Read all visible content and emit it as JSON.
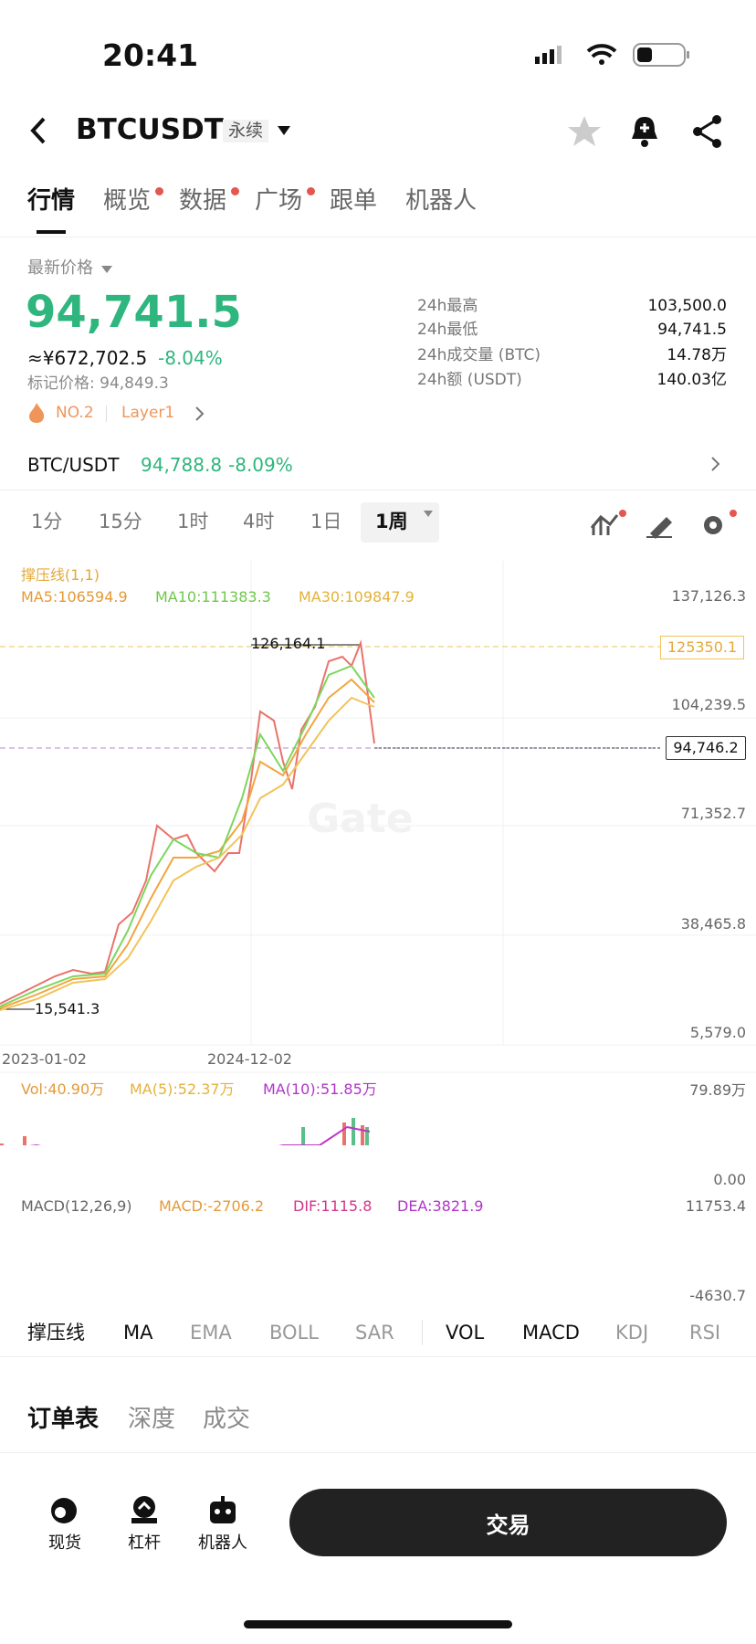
{
  "status_bar": {
    "time": "20:41"
  },
  "header": {
    "symbol": "BTCUSDT",
    "badge": "永续"
  },
  "tabs": [
    "行情",
    "概览",
    "数据",
    "广场",
    "跟单",
    "机器人"
  ],
  "price": {
    "label": "最新价格",
    "last": "94,741.5",
    "cny": "≈¥672,702.5",
    "change": "-8.04%",
    "mark": "标记价格: 94,849.3",
    "rank": "NO.2",
    "tag": "Layer1"
  },
  "stats": [
    {
      "label": "24h最高",
      "value": "103,500.0"
    },
    {
      "label": "24h最低",
      "value": "94,741.5"
    },
    {
      "label": "24h成交量 (BTC)",
      "value": "14.78万"
    },
    {
      "label": "24h额 (USDT)",
      "value": "140.03亿"
    }
  ],
  "spot": {
    "pair": "BTC/USDT",
    "price": "94,788.8",
    "change": "-8.09%"
  },
  "intervals": [
    "1分",
    "15分",
    "1时",
    "4时",
    "1日",
    "1周"
  ],
  "chart": {
    "indicator": "撑压线(1,1)",
    "ma": [
      "MA5:106594.9",
      "MA10:111383.3",
      "MA30:109847.9"
    ],
    "axis": [
      "137,126.3",
      "104,239.5",
      "71,352.7",
      "38,465.8",
      "5,579.0"
    ],
    "high": "126,164.1",
    "low": "15,541.3",
    "line_label": "125350.1",
    "current": "94,746.2",
    "watermark": "Gate",
    "dates": [
      "2023-01-02",
      "2024-12-02"
    ]
  },
  "volume": {
    "vol": "Vol:40.90万",
    "ma5": "MA(5):52.37万",
    "ma10": "MA(10):51.85万",
    "axis": [
      "79.89万",
      "0.00"
    ]
  },
  "macd": {
    "title": "MACD(12,26,9)",
    "macd": "MACD:-2706.2",
    "dif": "DIF:1115.8",
    "dea": "DEA:3821.9",
    "axis": [
      "11753.4",
      "-4630.7"
    ]
  },
  "indicators": [
    "撑压线",
    "MA",
    "EMA",
    "BOLL",
    "SAR",
    "VOL",
    "MACD",
    "KDJ",
    "RSI"
  ],
  "book_tabs": [
    "订单表",
    "深度",
    "成交"
  ],
  "bottom_nav": [
    "现货",
    "杠杆",
    "机器人"
  ],
  "trade_button": "交易"
}
